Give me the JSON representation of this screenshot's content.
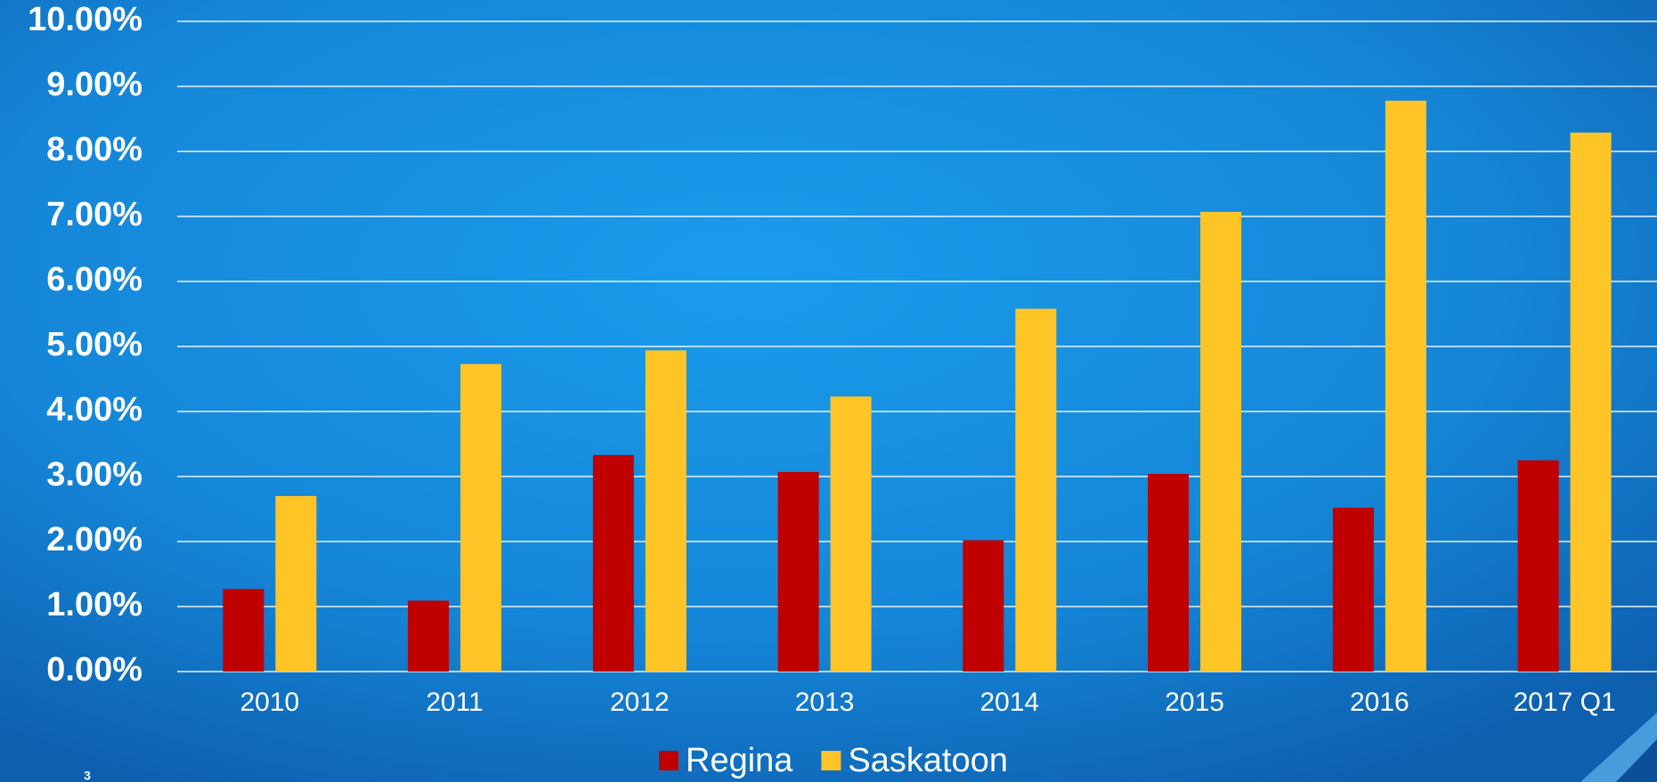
{
  "chart_data": {
    "type": "bar",
    "categories": [
      "2010",
      "2011",
      "2012",
      "2013",
      "2014",
      "2015",
      "2016",
      "2017 Q1"
    ],
    "series": [
      {
        "name": "Regina",
        "color": "#c00000",
        "values": [
          1.27,
          1.09,
          3.33,
          3.07,
          2.02,
          3.04,
          2.52,
          3.25
        ]
      },
      {
        "name": "Saskatoon",
        "color": "#ffc526",
        "values": [
          2.7,
          4.73,
          4.94,
          4.23,
          5.58,
          7.07,
          8.78,
          8.29
        ]
      }
    ],
    "ylim": [
      0,
      10
    ],
    "yticks": [
      {
        "value": 0,
        "label": "0.00%"
      },
      {
        "value": 1,
        "label": "1.00%"
      },
      {
        "value": 2,
        "label": "2.00%"
      },
      {
        "value": 3,
        "label": "3.00%"
      },
      {
        "value": 4,
        "label": "4.00%"
      },
      {
        "value": 5,
        "label": "5.00%"
      },
      {
        "value": 6,
        "label": "6.00%"
      },
      {
        "value": 7,
        "label": "7.00%"
      },
      {
        "value": 8,
        "label": "8.00%"
      },
      {
        "value": 9,
        "label": "9.00%"
      },
      {
        "value": 10,
        "label": "10.00%"
      }
    ],
    "grid": true,
    "legend": "bottom"
  },
  "page_number": "3"
}
